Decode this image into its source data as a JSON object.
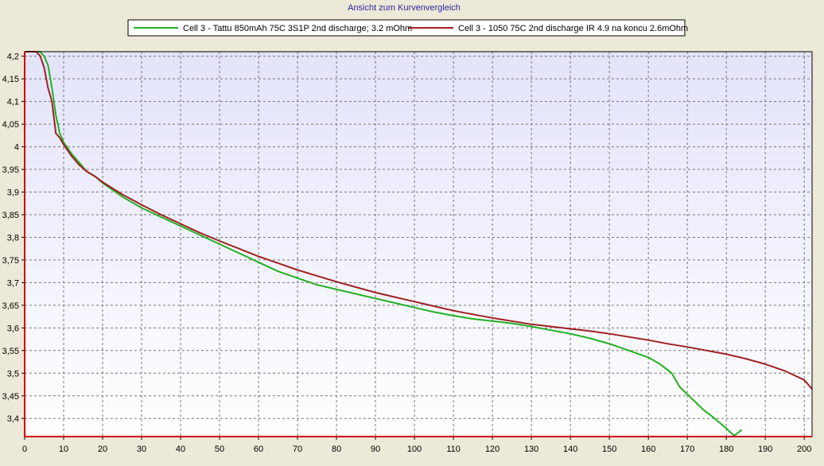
{
  "chart_data": {
    "type": "line",
    "title": "Ansicht zum Kurvenvergleich",
    "xlabel": "",
    "ylabel": "",
    "xlim": [
      0,
      202
    ],
    "ylim": [
      3.36,
      4.21
    ],
    "grid": true,
    "legend_position": "top-center",
    "x_ticks": [
      0,
      10,
      20,
      30,
      40,
      50,
      60,
      70,
      80,
      90,
      100,
      110,
      120,
      130,
      140,
      150,
      160,
      170,
      180,
      190,
      200
    ],
    "y_ticks": [
      {
        "value": 3.4,
        "label": "3,4"
      },
      {
        "value": 3.45,
        "label": "3,45"
      },
      {
        "value": 3.5,
        "label": "3,5"
      },
      {
        "value": 3.55,
        "label": "3,55"
      },
      {
        "value": 3.6,
        "label": "3,6"
      },
      {
        "value": 3.65,
        "label": "3,65"
      },
      {
        "value": 3.7,
        "label": "3,7"
      },
      {
        "value": 3.75,
        "label": "3,75"
      },
      {
        "value": 3.8,
        "label": "3,8"
      },
      {
        "value": 3.85,
        "label": "3,85"
      },
      {
        "value": 3.9,
        "label": "3,9"
      },
      {
        "value": 3.95,
        "label": "3,95"
      },
      {
        "value": 4.0,
        "label": "4"
      },
      {
        "value": 4.05,
        "label": "4,05"
      },
      {
        "value": 4.1,
        "label": "4,1"
      },
      {
        "value": 4.15,
        "label": "4,15"
      },
      {
        "value": 4.2,
        "label": "4,2"
      }
    ],
    "series": [
      {
        "name": "Cell 3 - Tattu 850mAh 75C 3S1P 2nd discharge; 3.2 mOhm",
        "color": "#22b022",
        "points": [
          [
            0,
            4.21
          ],
          [
            4,
            4.21
          ],
          [
            5,
            4.2
          ],
          [
            6,
            4.18
          ],
          [
            7,
            4.13
          ],
          [
            8,
            4.07
          ],
          [
            9,
            4.03
          ],
          [
            10,
            4.01
          ],
          [
            12,
            3.985
          ],
          [
            14,
            3.965
          ],
          [
            16,
            3.945
          ],
          [
            18,
            3.935
          ],
          [
            20,
            3.92
          ],
          [
            25,
            3.89
          ],
          [
            30,
            3.865
          ],
          [
            35,
            3.845
          ],
          [
            40,
            3.825
          ],
          [
            45,
            3.805
          ],
          [
            50,
            3.785
          ],
          [
            55,
            3.765
          ],
          [
            60,
            3.745
          ],
          [
            65,
            3.725
          ],
          [
            70,
            3.71
          ],
          [
            75,
            3.695
          ],
          [
            80,
            3.685
          ],
          [
            85,
            3.675
          ],
          [
            90,
            3.665
          ],
          [
            95,
            3.655
          ],
          [
            100,
            3.645
          ],
          [
            105,
            3.635
          ],
          [
            110,
            3.627
          ],
          [
            115,
            3.62
          ],
          [
            120,
            3.615
          ],
          [
            125,
            3.61
          ],
          [
            130,
            3.603
          ],
          [
            135,
            3.595
          ],
          [
            140,
            3.587
          ],
          [
            145,
            3.577
          ],
          [
            150,
            3.565
          ],
          [
            155,
            3.55
          ],
          [
            160,
            3.535
          ],
          [
            163,
            3.52
          ],
          [
            166,
            3.5
          ],
          [
            168,
            3.47
          ],
          [
            171,
            3.445
          ],
          [
            174,
            3.42
          ],
          [
            177,
            3.4
          ],
          [
            180,
            3.378
          ],
          [
            182,
            3.362
          ],
          [
            184,
            3.375
          ]
        ]
      },
      {
        "name": "Cell 3 - 1050 75C 2nd discharge IR 4.9 na koncu 2.6mOhm",
        "color": "#a02020",
        "points": [
          [
            0,
            4.21
          ],
          [
            3,
            4.21
          ],
          [
            4,
            4.2
          ],
          [
            5,
            4.175
          ],
          [
            6,
            4.13
          ],
          [
            7,
            4.1
          ],
          [
            8,
            4.03
          ],
          [
            9,
            4.02
          ],
          [
            10,
            4.005
          ],
          [
            12,
            3.98
          ],
          [
            14,
            3.96
          ],
          [
            16,
            3.945
          ],
          [
            18,
            3.935
          ],
          [
            20,
            3.922
          ],
          [
            25,
            3.895
          ],
          [
            30,
            3.872
          ],
          [
            35,
            3.85
          ],
          [
            40,
            3.83
          ],
          [
            45,
            3.81
          ],
          [
            50,
            3.792
          ],
          [
            55,
            3.775
          ],
          [
            60,
            3.758
          ],
          [
            65,
            3.743
          ],
          [
            70,
            3.728
          ],
          [
            75,
            3.715
          ],
          [
            80,
            3.702
          ],
          [
            85,
            3.69
          ],
          [
            90,
            3.678
          ],
          [
            95,
            3.668
          ],
          [
            100,
            3.658
          ],
          [
            105,
            3.648
          ],
          [
            110,
            3.638
          ],
          [
            115,
            3.63
          ],
          [
            120,
            3.622
          ],
          [
            125,
            3.615
          ],
          [
            130,
            3.608
          ],
          [
            135,
            3.603
          ],
          [
            140,
            3.598
          ],
          [
            145,
            3.593
          ],
          [
            150,
            3.587
          ],
          [
            155,
            3.58
          ],
          [
            160,
            3.573
          ],
          [
            165,
            3.565
          ],
          [
            170,
            3.558
          ],
          [
            175,
            3.55
          ],
          [
            180,
            3.542
          ],
          [
            185,
            3.532
          ],
          [
            190,
            3.52
          ],
          [
            195,
            3.505
          ],
          [
            200,
            3.485
          ],
          [
            202,
            3.465
          ]
        ]
      }
    ]
  }
}
